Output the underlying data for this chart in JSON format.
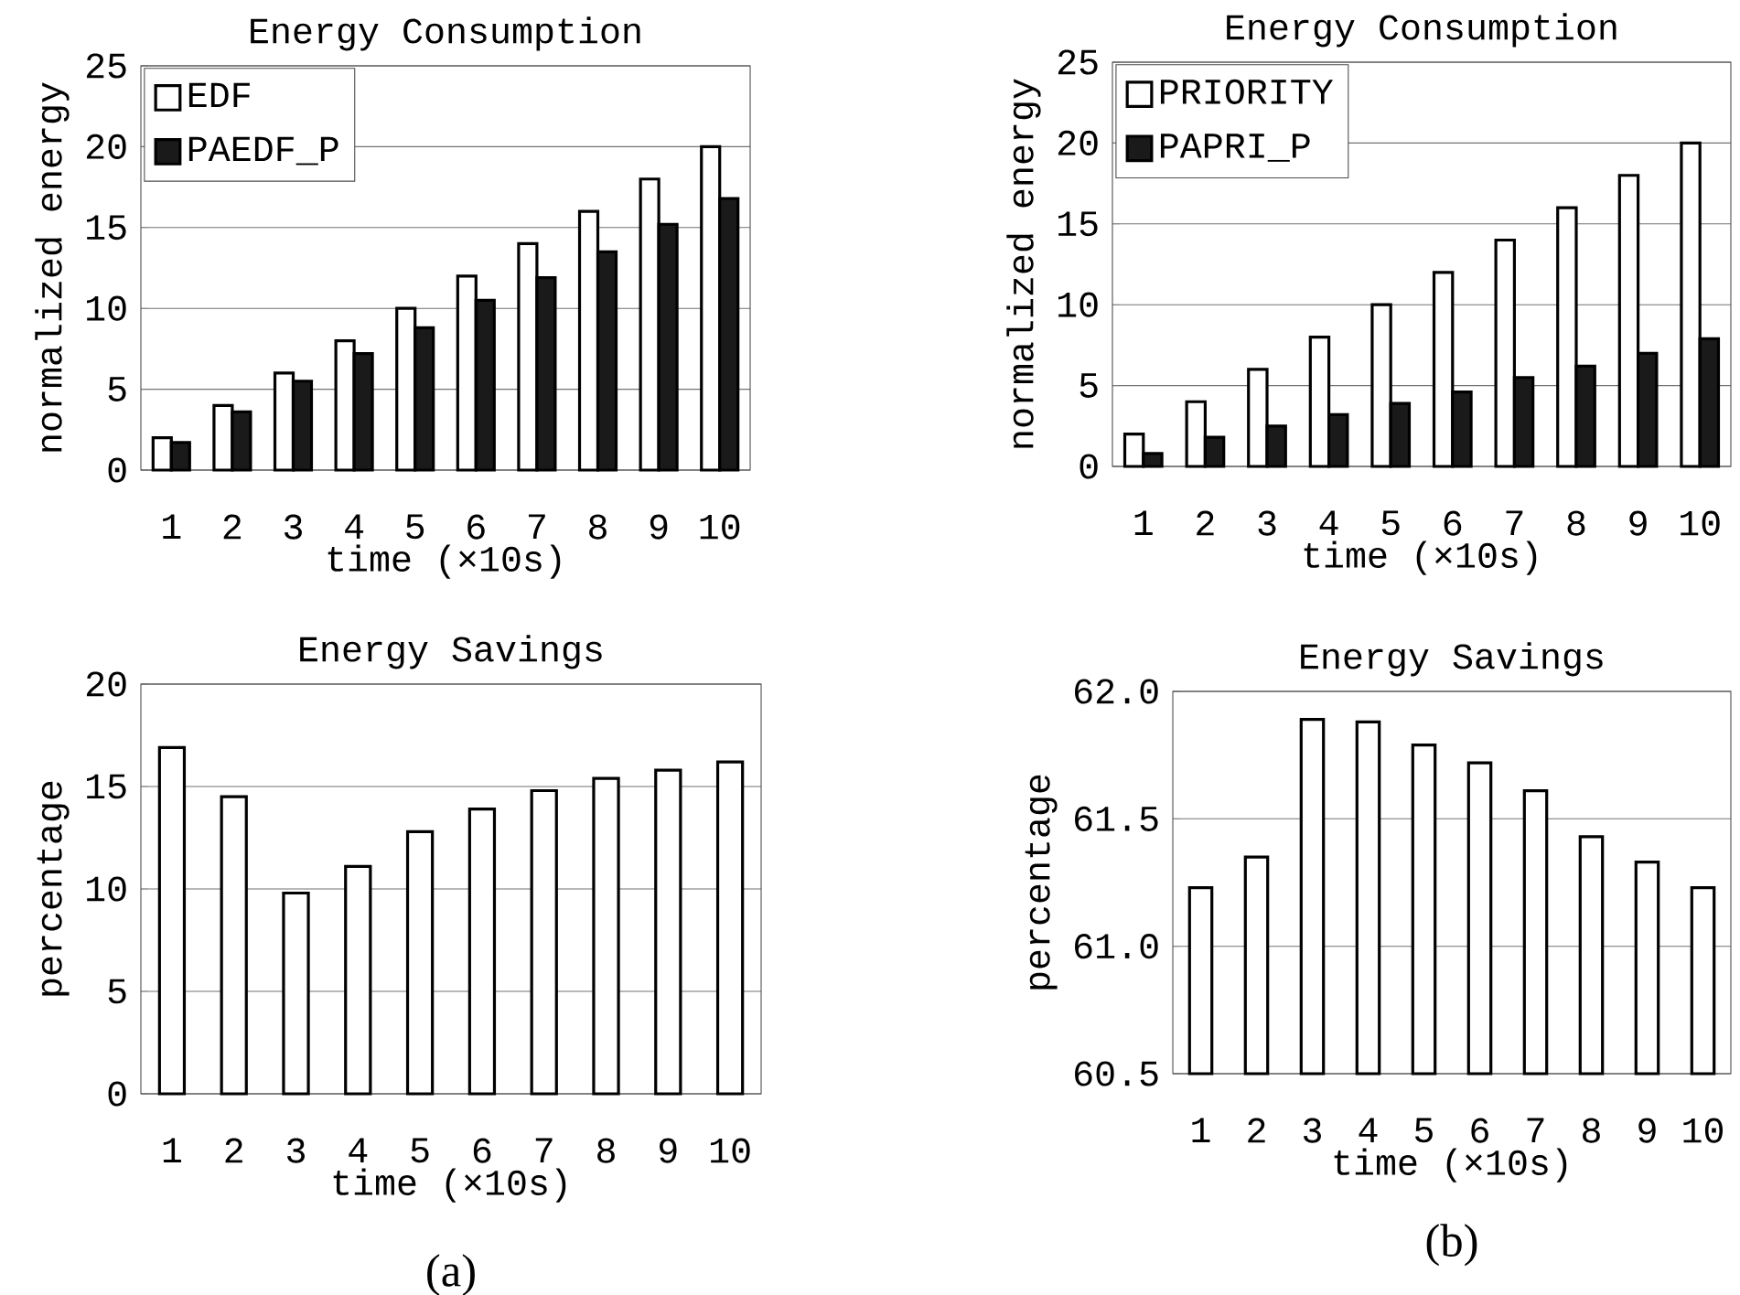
{
  "chart_data": [
    {
      "type": "bar",
      "title": "Energy Consumption",
      "xlabel": "time (×10s)",
      "ylabel": "normalized energy",
      "categories": [
        "1",
        "2",
        "3",
        "4",
        "5",
        "6",
        "7",
        "8",
        "9",
        "10"
      ],
      "series": [
        {
          "name": "EDF",
          "color": "#ffffff",
          "values": [
            2,
            4,
            6,
            8,
            10,
            12,
            14,
            16,
            18,
            20
          ]
        },
        {
          "name": "PAEDF_P",
          "color": "#1a1a1a",
          "values": [
            1.7,
            3.6,
            5.5,
            7.2,
            8.8,
            10.5,
            11.9,
            13.5,
            15.2,
            16.8
          ]
        }
      ],
      "ylim": [
        0,
        25
      ],
      "yticks": [
        0,
        5,
        10,
        15,
        20,
        25
      ],
      "grid": "y",
      "legend": "top left"
    },
    {
      "type": "bar",
      "title": "Energy Consumption",
      "xlabel": "time (×10s)",
      "ylabel": "normalized energy",
      "categories": [
        "1",
        "2",
        "3",
        "4",
        "5",
        "6",
        "7",
        "8",
        "9",
        "10"
      ],
      "series": [
        {
          "name": "PRIORITY",
          "color": "#ffffff",
          "values": [
            2,
            4,
            6,
            8,
            10,
            12,
            14,
            16,
            18,
            20
          ]
        },
        {
          "name": "PAPRI_P",
          "color": "#1a1a1a",
          "values": [
            0.8,
            1.8,
            2.5,
            3.2,
            3.9,
            4.6,
            5.5,
            6.2,
            7.0,
            7.9
          ]
        }
      ],
      "ylim": [
        0,
        25
      ],
      "yticks": [
        0,
        5,
        10,
        15,
        20,
        25
      ],
      "grid": "y",
      "legend": "top left"
    },
    {
      "type": "bar",
      "title": "Energy Savings",
      "xlabel": "time (×10s)",
      "ylabel": "percentage",
      "categories": [
        "1",
        "2",
        "3",
        "4",
        "5",
        "6",
        "7",
        "8",
        "9",
        "10"
      ],
      "series": [
        {
          "color": "#ffffff",
          "values": [
            16.9,
            14.5,
            9.8,
            11.1,
            12.8,
            13.9,
            14.8,
            15.4,
            15.8,
            16.2
          ]
        }
      ],
      "ylim": [
        0,
        20
      ],
      "yticks": [
        0,
        5,
        10,
        15,
        20
      ],
      "grid": "y",
      "annotations": [
        "(a)"
      ]
    },
    {
      "type": "bar",
      "title": "Energy Savings",
      "xlabel": "time (×10s)",
      "ylabel": "percentage",
      "categories": [
        "1",
        "2",
        "3",
        "4",
        "5",
        "6",
        "7",
        "8",
        "9",
        "10"
      ],
      "series": [
        {
          "color": "#ffffff",
          "values": [
            61.23,
            61.35,
            61.89,
            61.88,
            61.79,
            61.72,
            61.61,
            61.43,
            61.33,
            61.23
          ]
        }
      ],
      "ylim": [
        60.5,
        62
      ],
      "yticks": [
        {
          "value": 60.5,
          "label": "60.5"
        },
        {
          "value": 61,
          "label": "61.0"
        },
        {
          "value": 61.5,
          "label": "61.5"
        },
        {
          "value": 62,
          "label": "62.0"
        }
      ],
      "grid": "y",
      "annotations": [
        "(b)"
      ]
    }
  ]
}
